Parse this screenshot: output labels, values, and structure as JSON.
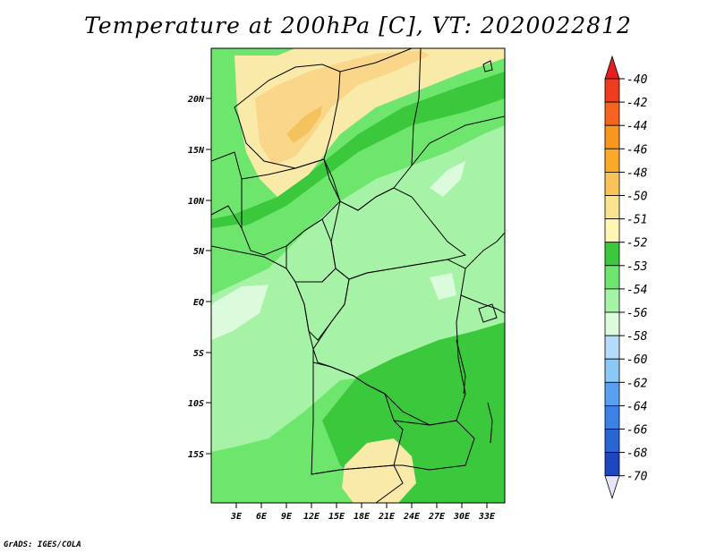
{
  "title": "Temperature at 200hPa [C], VT: 2020022812",
  "footer": "GrADS: IGES/COLA",
  "map": {
    "lat_labels": [
      "20N",
      "15N",
      "10N",
      "5N",
      "EQ",
      "5S",
      "10S",
      "15S"
    ],
    "lon_labels": [
      "3E",
      "6E",
      "9E",
      "12E",
      "15E",
      "18E",
      "21E",
      "24E",
      "27E",
      "30E",
      "33E"
    ],
    "colors": {
      "yellow_dark": "#f5c260",
      "yellow": "#fad68a",
      "yellow_light": "#faeaaa",
      "green_dark": "#3cc83c",
      "green": "#6ee66e",
      "green_light": "#a6f2a6",
      "pale": "#dcfadc",
      "cyan_pale": "#e8fafa"
    }
  },
  "legend": {
    "labels": [
      "-40",
      "-42",
      "-44",
      "-46",
      "-48",
      "-50",
      "-51",
      "-52",
      "-53",
      "-54",
      "-56",
      "-58",
      "-60",
      "-62",
      "-64",
      "-66",
      "-68",
      "-70"
    ],
    "colors": [
      "#f03c1e",
      "#f5641e",
      "#f8961e",
      "#faaa28",
      "#fac35a",
      "#fae38e",
      "#fff5b4",
      "#3cc83c",
      "#6ee66e",
      "#a6f2a6",
      "#dcfadc",
      "#b4dcfa",
      "#8cc8f5",
      "#5aa0f0",
      "#3c82e6",
      "#2864d2",
      "#1e46be",
      "#0a1478"
    ],
    "top_arrow_color": "#e61e1e",
    "bottom_arrow_color": "#e6e6fa"
  }
}
